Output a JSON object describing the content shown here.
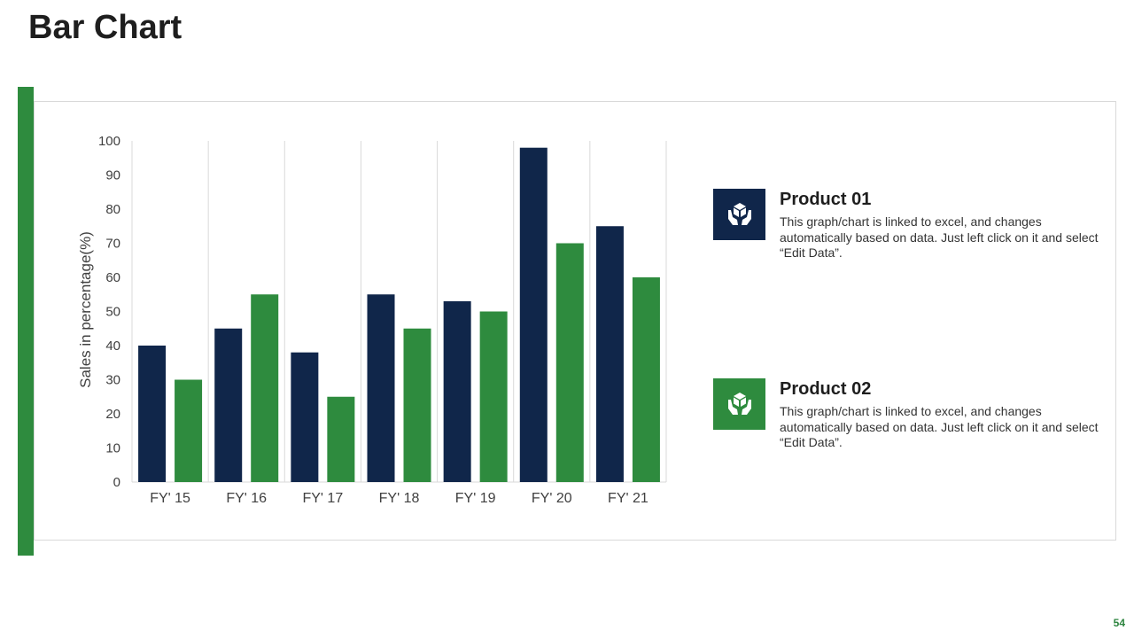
{
  "title": "Bar Chart",
  "page_number": "54",
  "colors": {
    "accent": "#2E8B3E",
    "product_01": "#10264A",
    "product_02": "#2E8B3E"
  },
  "legend": [
    {
      "name": "Product 01",
      "description": "This graph/chart is linked to excel, and changes automatically based on data. Just left click on it and select “Edit Data”.",
      "icon": "hands-box-icon"
    },
    {
      "name": "Product 02",
      "description": "This graph/chart is linked to excel, and changes automatically based on data. Just left click on it and select “Edit Data”.",
      "icon": "hands-box-icon"
    }
  ],
  "chart_data": {
    "type": "bar",
    "categories": [
      "FY' 15",
      "FY' 16",
      "FY' 17",
      "FY' 18",
      "FY' 19",
      "FY' 20",
      "FY' 21"
    ],
    "series": [
      {
        "name": "Product 01",
        "color": "#10264A",
        "values": [
          40,
          45,
          38,
          55,
          53,
          98,
          75
        ]
      },
      {
        "name": "Product 02",
        "color": "#2E8B3E",
        "values": [
          30,
          55,
          25,
          45,
          50,
          70,
          60
        ]
      }
    ],
    "ylabel": "Sales in percentage(%)",
    "xlabel": "",
    "ylim": [
      0,
      100
    ],
    "yticks": [
      0,
      10,
      20,
      30,
      40,
      50,
      60,
      70,
      80,
      90,
      100
    ],
    "grid": "vertical"
  }
}
